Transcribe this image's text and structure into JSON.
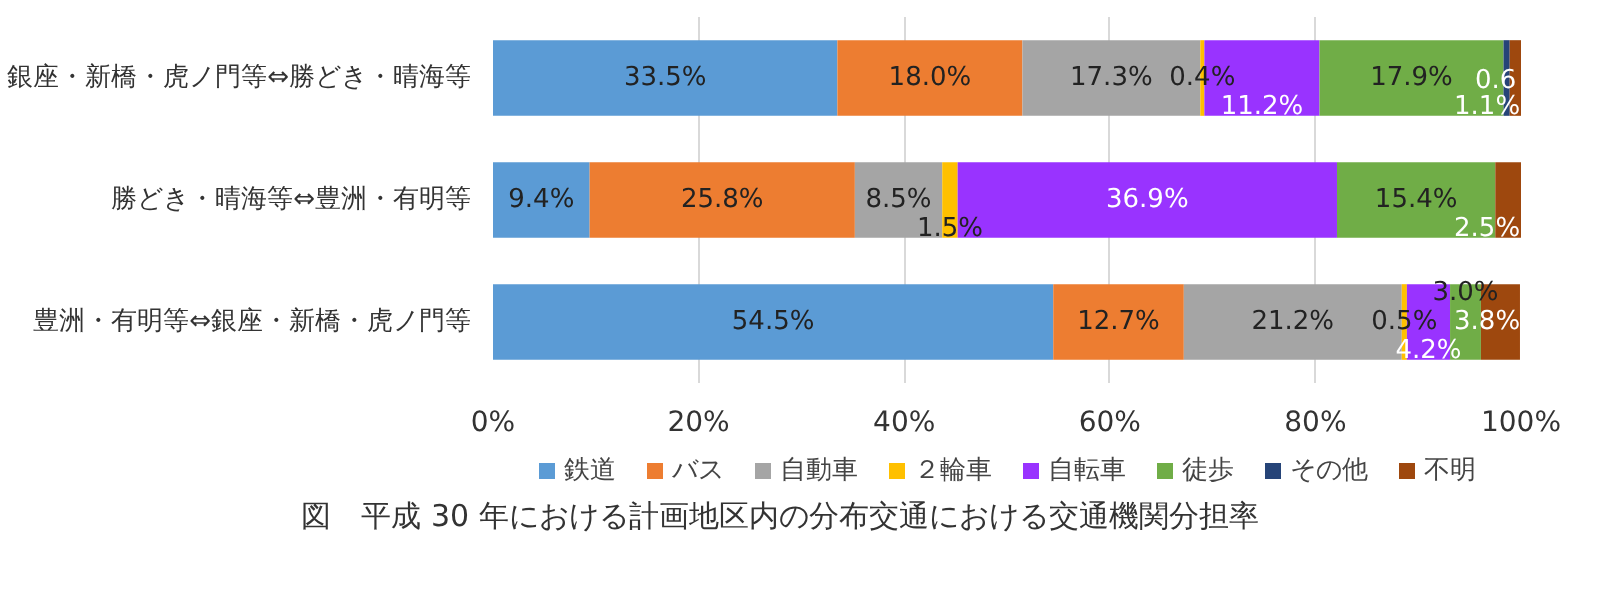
{
  "chart_data": {
    "type": "bar",
    "orientation": "horizontal",
    "stacked": true,
    "title": "図　平成 30 年における計画地区内の分布交通における交通機関分担率",
    "categories": [
      "銀座・新橋・虎ノ門等⇔勝どき・晴海等",
      "勝どき・晴海等⇔豊洲・有明等",
      "豊洲・有明等⇔銀座・新橋・虎ノ門等"
    ],
    "series": [
      {
        "name": "鉄道",
        "color": "#5b9bd5",
        "values": [
          33.5,
          9.4,
          54.5
        ],
        "value_labels": [
          "33.5%",
          "9.4%",
          "54.5%"
        ]
      },
      {
        "name": "バス",
        "color": "#ed7d31",
        "values": [
          18.0,
          25.8,
          12.7
        ],
        "value_labels": [
          "18.0%",
          "25.8%",
          "12.7%"
        ]
      },
      {
        "name": "自動車",
        "color": "#a5a5a5",
        "values": [
          17.3,
          8.5,
          21.2
        ],
        "value_labels": [
          "17.3%",
          "8.5%",
          "21.2%"
        ]
      },
      {
        "name": "２輪車",
        "color": "#ffc000",
        "values": [
          0.4,
          1.5,
          0.5
        ],
        "value_labels": [
          "0.4%",
          "1.5%",
          "0.5%"
        ]
      },
      {
        "name": "自転車",
        "color": "#9933ff",
        "values": [
          11.2,
          36.9,
          4.2
        ],
        "value_labels": [
          "11.2%",
          "36.9%",
          "4.2%"
        ]
      },
      {
        "name": "徒歩",
        "color": "#70ad47",
        "values": [
          17.9,
          15.4,
          3.0
        ],
        "value_labels": [
          "17.9%",
          "15.4%",
          "3.0%"
        ]
      },
      {
        "name": "その他",
        "color": "#264478",
        "values": [
          0.6,
          0,
          0
        ],
        "value_labels": [
          "0.6",
          null,
          null
        ]
      },
      {
        "name": "不明",
        "color": "#9e480e",
        "values": [
          1.1,
          2.5,
          3.8
        ],
        "value_labels": [
          "1.1%",
          "2.5%",
          "3.8%"
        ]
      }
    ],
    "xlim": [
      0,
      100
    ],
    "xticks": [
      {
        "value": 0,
        "label": "0%"
      },
      {
        "value": 20,
        "label": "20%"
      },
      {
        "value": 40,
        "label": "40%"
      },
      {
        "value": 60,
        "label": "60%"
      },
      {
        "value": 80,
        "label": "80%"
      },
      {
        "value": 100,
        "label": "100%"
      }
    ],
    "grid": "x",
    "legend": "bottom"
  }
}
